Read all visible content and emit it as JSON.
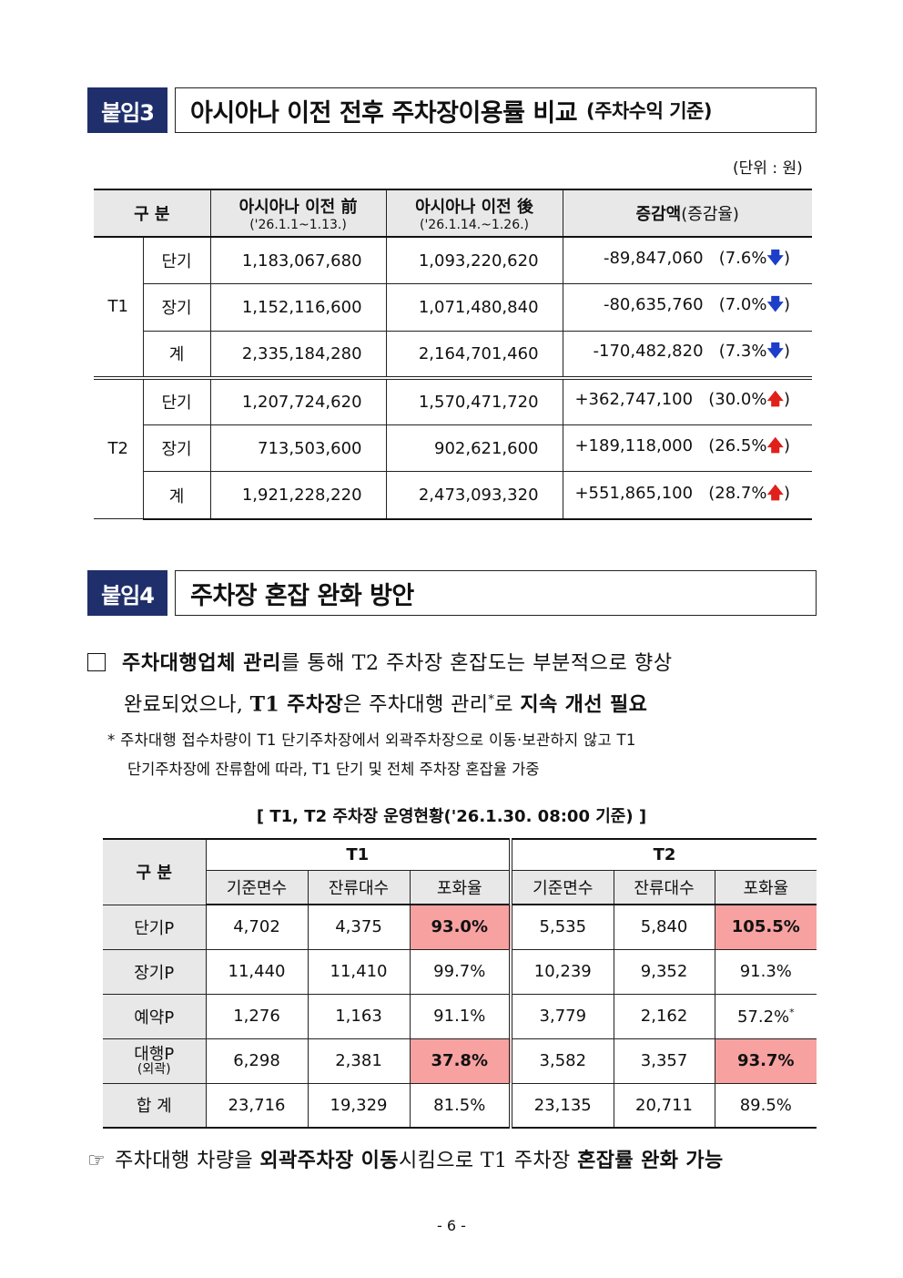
{
  "section3": {
    "tag": "붙임3",
    "title": "아시아나 이전 전후 주차장이용률 비교",
    "subtitle": "(주차수익 기준)",
    "unit": "(단위 : 원)",
    "header": {
      "category": "구 분",
      "before": "아시아나 이전 前",
      "before_period": "('26.1.1~1.13.)",
      "after": "아시아나 이전 後",
      "after_period": "('26.1.14.~1.26.)",
      "change": "증감액",
      "change_sub": "(증감율)"
    },
    "groups": [
      {
        "name": "T1",
        "rows": [
          {
            "type": "단기",
            "before": "1,183,067,680",
            "after": "1,093,220,620",
            "change": "-89,847,060",
            "rate": "(7.6%",
            "dir": "down",
            "close": ")"
          },
          {
            "type": "장기",
            "before": "1,152,116,600",
            "after": "1,071,480,840",
            "change": "-80,635,760",
            "rate": "(7.0%",
            "dir": "down",
            "close": ")"
          },
          {
            "type": "계",
            "before": "2,335,184,280",
            "after": "2,164,701,460",
            "change": "-170,482,820",
            "rate": "(7.3%",
            "dir": "down",
            "close": ")"
          }
        ]
      },
      {
        "name": "T2",
        "rows": [
          {
            "type": "단기",
            "before": "1,207,724,620",
            "after": "1,570,471,720",
            "change": "+362,747,100",
            "rate": "(30.0%",
            "dir": "up",
            "close": ")"
          },
          {
            "type": "장기",
            "before": "713,503,600",
            "after": "902,621,600",
            "change": "+189,118,000",
            "rate": "(26.5%",
            "dir": "up",
            "close": ")"
          },
          {
            "type": "계",
            "before": "1,921,228,220",
            "after": "2,473,093,320",
            "change": "+551,865,100",
            "rate": "(28.7%",
            "dir": "up",
            "close": ")"
          }
        ]
      }
    ],
    "arrows": {
      "down": "🡇",
      "up": "🡅"
    }
  },
  "section4": {
    "tag": "붙임4",
    "title": "주차장 혼잡 완화 방안",
    "para1": {
      "b1": "주차대행업체 관리",
      "t1": "를 통해 T2 주차장 혼잡도는 부분적으로 향상",
      "t2": "완료되었으나, ",
      "b2": "T1 주차장",
      "t3": "은 주차대행 관리",
      "star": "*",
      "t4": "로 ",
      "b3": "지속 개선 필요"
    },
    "note_line1": "* 주차대행 접수차량이 T1 단기주차장에서 외곽주차장으로 이동·보관하지 않고 T1",
    "note_line2": "단기주차장에 잔류함에 따라, T1 단기 및 전체 주차장 혼잡율 가중",
    "caption": "[ T1, T2 주차장 운영현황('26.1.30. 08:00 기준) ]",
    "table": {
      "category": "구 분",
      "t1": "T1",
      "t2": "T2",
      "cols": [
        "기준면수",
        "잔류대수",
        "포화율"
      ],
      "rows": [
        {
          "label": "단기P",
          "sub": "",
          "t1": [
            "4,702",
            "4,375",
            "93.0%"
          ],
          "t2": [
            "5,535",
            "5,840",
            "105.5%"
          ],
          "hi1": true,
          "hi2": true,
          "mark": ""
        },
        {
          "label": "장기P",
          "sub": "",
          "t1": [
            "11,440",
            "11,410",
            "99.7%"
          ],
          "t2": [
            "10,239",
            "9,352",
            "91.3%"
          ],
          "hi1": false,
          "hi2": false,
          "mark": ""
        },
        {
          "label": "예약P",
          "sub": "",
          "t1": [
            "1,276",
            "1,163",
            "91.1%"
          ],
          "t2": [
            "3,779",
            "2,162",
            "57.2%"
          ],
          "hi1": false,
          "hi2": false,
          "mark": "*"
        },
        {
          "label": "대행P",
          "sub": "(외곽)",
          "t1": [
            "6,298",
            "2,381",
            "37.8%"
          ],
          "t2": [
            "3,582",
            "3,357",
            "93.7%"
          ],
          "hi1": true,
          "hi2": true,
          "mark": ""
        },
        {
          "label": "합 계",
          "sub": "",
          "t1": [
            "23,716",
            "19,329",
            "81.5%"
          ],
          "t2": [
            "23,135",
            "20,711",
            "89.5%"
          ],
          "hi1": false,
          "hi2": false,
          "mark": ""
        }
      ]
    },
    "conclusion": {
      "pointer": "☞",
      "t1": "주차대행 차량을 ",
      "b1": "외곽주차장 이동",
      "t2": "시킴으로 T1 주차장 ",
      "b2": "혼잡률 완화 가능"
    }
  },
  "page_number": "- 6 -",
  "colors": {
    "tag_bg": "#1f2f6b",
    "highlight": "#f7a1a1",
    "header_bg": "#e8e8e8",
    "down": "#1c3ec8",
    "up": "#e0201a"
  }
}
